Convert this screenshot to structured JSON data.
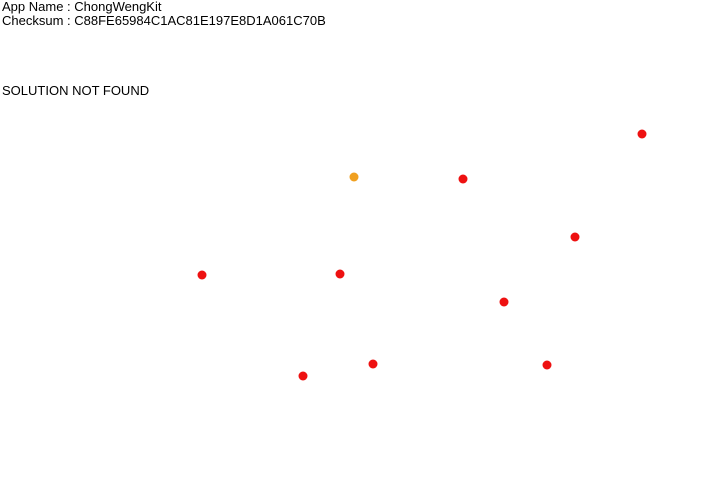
{
  "header": {
    "app_name_label": "App Name : ",
    "app_name_value": "ChongWengKit",
    "checksum_label": "Checksum : ",
    "checksum_value": "C88FE65984C1AC81E197E8D1A061C70B"
  },
  "status_text": "SOLUTION NOT FOUND",
  "colors": {
    "point_default": "#ee1111",
    "point_highlight": "#f0a020"
  },
  "points": [
    {
      "kind": "highlight"
    },
    {
      "kind": "default"
    },
    {
      "kind": "default"
    },
    {
      "kind": "default"
    },
    {
      "kind": "default"
    },
    {
      "kind": "default"
    },
    {
      "kind": "default"
    },
    {
      "kind": "default"
    },
    {
      "kind": "default"
    },
    {
      "kind": "default"
    }
  ]
}
